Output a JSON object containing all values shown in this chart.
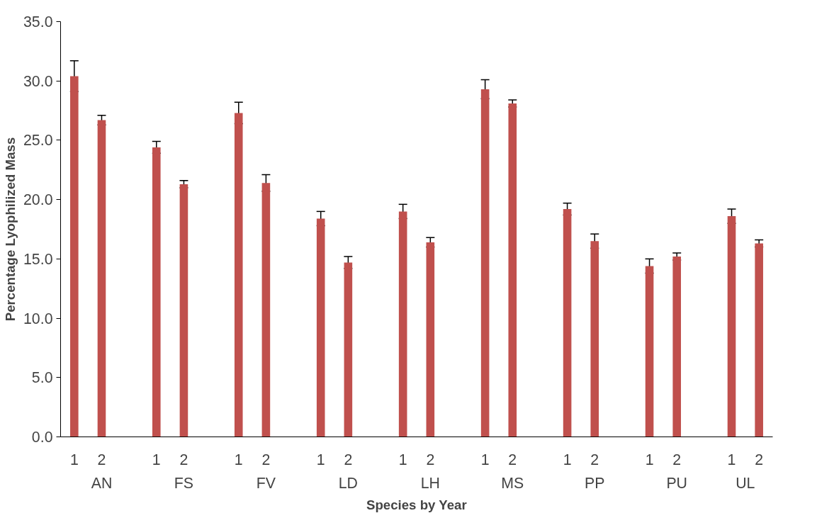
{
  "chart_data": {
    "type": "bar",
    "xlabel": "Species by Year",
    "ylabel": "Percentage Lyophilized Mass",
    "categories": [
      "1",
      "2",
      null,
      "1",
      "2",
      null,
      "1",
      "2",
      null,
      "1",
      "2",
      null,
      "1",
      "2",
      null,
      "1",
      "2",
      null,
      "1",
      "2",
      null,
      "1",
      "2",
      null,
      "1",
      "2"
    ],
    "values": [
      30.4,
      26.7,
      null,
      24.4,
      21.3,
      null,
      27.3,
      21.4,
      null,
      18.4,
      14.7,
      null,
      19.0,
      16.4,
      null,
      29.3,
      28.1,
      null,
      19.2,
      16.5,
      null,
      14.4,
      15.2,
      null,
      18.6,
      16.3
    ],
    "errors": [
      1.3,
      0.4,
      null,
      0.5,
      0.3,
      null,
      0.9,
      0.7,
      null,
      0.6,
      0.5,
      null,
      0.6,
      0.4,
      null,
      0.8,
      0.3,
      null,
      0.5,
      0.6,
      null,
      0.6,
      0.3,
      null,
      0.6,
      0.3
    ],
    "color": "#c0504d",
    "annotations": [
      "AN",
      "FS",
      "FV",
      "LD",
      "LH",
      "MS",
      "PP",
      "PU",
      "UL"
    ],
    "ylim": [
      0,
      35
    ],
    "yticks": [
      {
        "value": 0,
        "label": "0.0"
      },
      {
        "value": 5,
        "label": "5.0"
      },
      {
        "value": 10,
        "label": "10.0"
      },
      {
        "value": 15,
        "label": "15.0"
      },
      {
        "value": 20,
        "label": "20.0"
      },
      {
        "value": 25,
        "label": "25.0"
      },
      {
        "value": 30,
        "label": "30.0"
      },
      {
        "value": 35,
        "label": "35.0"
      }
    ],
    "grid": false
  }
}
